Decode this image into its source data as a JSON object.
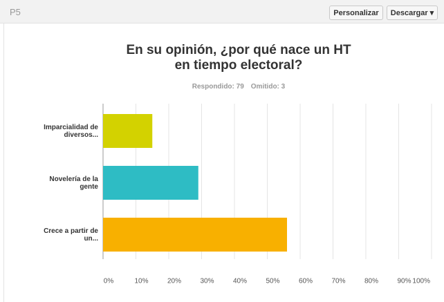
{
  "header": {
    "question": "P5",
    "buttons": [
      "Personalizar",
      "Descargar"
    ]
  },
  "chart_data": {
    "type": "bar",
    "orientation": "horizontal",
    "title": "En su opinión, ¿por qué nace un HT en tiempo electoral?",
    "subtitle": [
      "Respondido: 79",
      "Omitido: 3"
    ],
    "categories": [
      "Imparcialidad de diversos...",
      "Novelería de la gente",
      "Crece a partir de un..."
    ],
    "values": [
      15,
      29,
      56
    ],
    "colors": [
      "#d3d200",
      "#2ebcc4",
      "#f8b000"
    ],
    "xlim": [
      0,
      100
    ],
    "xticks": [
      {
        "value": 0,
        "label": "0%"
      },
      {
        "value": 10,
        "label": "10%"
      },
      {
        "value": 20,
        "label": "20%"
      },
      {
        "value": 30,
        "label": "30%"
      },
      {
        "value": 40,
        "label": "40%"
      },
      {
        "value": 50,
        "label": "50%"
      },
      {
        "value": 60,
        "label": "60%"
      },
      {
        "value": 70,
        "label": "70%"
      },
      {
        "value": 80,
        "label": "80%"
      },
      {
        "value": 90,
        "label": "90%"
      },
      {
        "value": 100,
        "label": "100%"
      }
    ],
    "grid": true
  }
}
